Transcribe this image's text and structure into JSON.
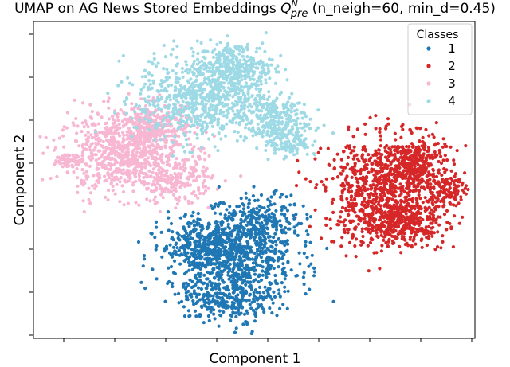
{
  "chart_data": {
    "type": "scatter",
    "title_main": "UMAP on AG News Stored Embeddings ",
    "title_symbol": "Q",
    "title_sup": "N",
    "title_sub": "pre",
    "title_tail": " (n_neigh=60, min_d=0.45)",
    "xlabel": "Component 1",
    "ylabel": "Component 2",
    "x_ticks_labeled": false,
    "y_ticks_labeled": false,
    "grid": false,
    "legend": {
      "title": "Classes",
      "placement": "top-right",
      "entries": [
        "1",
        "2",
        "3",
        "4"
      ]
    },
    "series": [
      {
        "name": "1",
        "color": "#1f77b4",
        "clusters": [
          {
            "cx": 0.45,
            "cy": 0.24,
            "rx": 0.12,
            "ry": 0.12,
            "weight": 1.0
          },
          {
            "cx": 0.4,
            "cy": 0.3,
            "rx": 0.09,
            "ry": 0.07,
            "weight": 0.45
          },
          {
            "cx": 0.52,
            "cy": 0.36,
            "rx": 0.07,
            "ry": 0.08,
            "weight": 0.35
          },
          {
            "cx": 0.45,
            "cy": 0.12,
            "rx": 0.08,
            "ry": 0.05,
            "weight": 0.3
          }
        ]
      },
      {
        "name": "2",
        "color": "#d62728",
        "clusters": [
          {
            "cx": 0.78,
            "cy": 0.46,
            "rx": 0.1,
            "ry": 0.14,
            "weight": 1.0
          },
          {
            "cx": 0.86,
            "cy": 0.55,
            "rx": 0.06,
            "ry": 0.08,
            "weight": 0.5
          },
          {
            "cx": 0.84,
            "cy": 0.37,
            "rx": 0.08,
            "ry": 0.06,
            "weight": 0.5
          },
          {
            "cx": 0.94,
            "cy": 0.47,
            "rx": 0.03,
            "ry": 0.04,
            "weight": 0.15
          }
        ]
      },
      {
        "name": "3",
        "color": "#f7b6d2",
        "clusters": [
          {
            "cx": 0.2,
            "cy": 0.58,
            "rx": 0.12,
            "ry": 0.1,
            "weight": 1.0
          },
          {
            "cx": 0.27,
            "cy": 0.67,
            "rx": 0.08,
            "ry": 0.06,
            "weight": 0.45
          },
          {
            "cx": 0.07,
            "cy": 0.56,
            "rx": 0.02,
            "ry": 0.02,
            "weight": 0.06
          },
          {
            "cx": 0.32,
            "cy": 0.5,
            "rx": 0.07,
            "ry": 0.06,
            "weight": 0.3
          }
        ]
      },
      {
        "name": "4",
        "color": "#9edae5",
        "clusters": [
          {
            "cx": 0.38,
            "cy": 0.76,
            "rx": 0.12,
            "ry": 0.12,
            "weight": 1.0
          },
          {
            "cx": 0.46,
            "cy": 0.85,
            "rx": 0.07,
            "ry": 0.07,
            "weight": 0.45
          },
          {
            "cx": 0.54,
            "cy": 0.69,
            "rx": 0.07,
            "ry": 0.07,
            "weight": 0.4
          },
          {
            "cx": 0.58,
            "cy": 0.62,
            "rx": 0.04,
            "ry": 0.04,
            "weight": 0.15
          }
        ]
      }
    ]
  }
}
